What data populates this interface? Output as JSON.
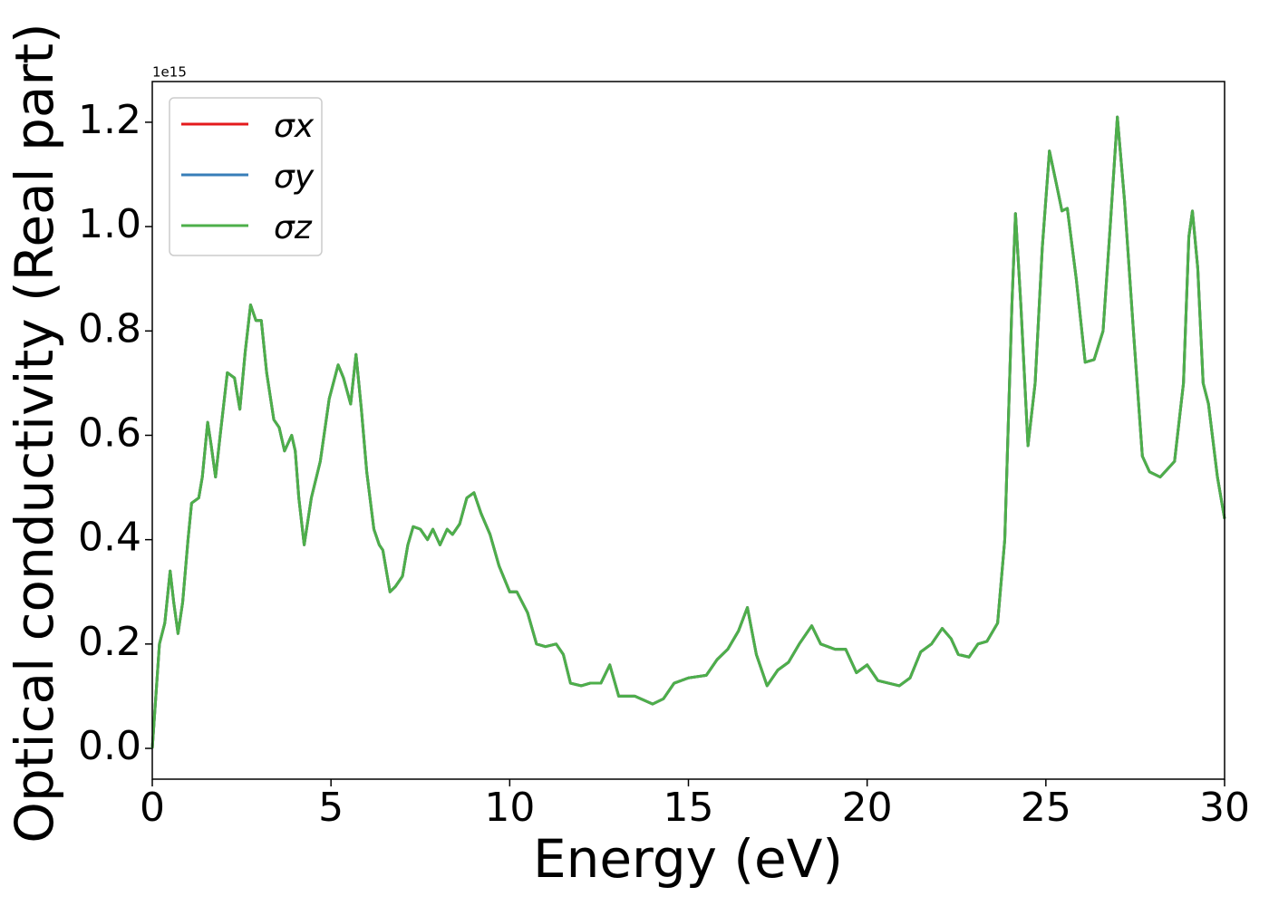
{
  "chart_data": {
    "type": "line",
    "xlabel": "Energy (eV)",
    "ylabel": "Optical conductivity (Real part)",
    "y_offset_label": "1e15",
    "x": [
      0,
      0.1,
      0.2,
      0.35,
      0.5,
      0.6,
      0.72,
      0.85,
      1.0,
      1.1,
      1.3,
      1.4,
      1.55,
      1.65,
      1.77,
      1.9,
      2.1,
      2.3,
      2.45,
      2.6,
      2.75,
      2.9,
      3.05,
      3.2,
      3.4,
      3.55,
      3.7,
      3.9,
      4.0,
      4.1,
      4.25,
      4.45,
      4.7,
      4.95,
      5.2,
      5.35,
      5.55,
      5.7,
      5.85,
      6.0,
      6.2,
      6.35,
      6.45,
      6.65,
      6.8,
      7.0,
      7.15,
      7.3,
      7.5,
      7.7,
      7.85,
      8.05,
      8.25,
      8.4,
      8.6,
      8.8,
      9.0,
      9.2,
      9.45,
      9.7,
      10.0,
      10.2,
      10.5,
      10.75,
      11.0,
      11.3,
      11.5,
      11.7,
      12.0,
      12.25,
      12.55,
      12.8,
      13.05,
      13.5,
      14.0,
      14.3,
      14.6,
      15.0,
      15.5,
      15.8,
      16.1,
      16.4,
      16.65,
      16.9,
      17.2,
      17.5,
      17.8,
      18.1,
      18.45,
      18.7,
      19.1,
      19.4,
      19.7,
      20.0,
      20.3,
      20.6,
      20.9,
      21.2,
      21.5,
      21.8,
      22.1,
      22.35,
      22.55,
      22.85,
      23.1,
      23.35,
      23.65,
      23.85,
      24.05,
      24.15,
      24.3,
      24.5,
      24.7,
      24.9,
      25.1,
      25.3,
      25.45,
      25.6,
      25.85,
      26.1,
      26.35,
      26.6,
      26.8,
      27.0,
      27.2,
      27.45,
      27.7,
      27.9,
      28.2,
      28.4,
      28.6,
      28.85,
      29.0,
      29.1,
      29.25,
      29.4,
      29.55,
      29.8,
      30.0
    ],
    "series": [
      {
        "name": "σx",
        "color": "#e41a1c",
        "values": [
          0,
          0.1,
          0.2,
          0.24,
          0.34,
          0.28,
          0.22,
          0.28,
          0.4,
          0.47,
          0.48,
          0.52,
          0.625,
          0.58,
          0.52,
          0.6,
          0.72,
          0.71,
          0.65,
          0.76,
          0.85,
          0.82,
          0.82,
          0.72,
          0.63,
          0.615,
          0.57,
          0.6,
          0.57,
          0.48,
          0.39,
          0.48,
          0.55,
          0.67,
          0.735,
          0.71,
          0.66,
          0.755,
          0.65,
          0.53,
          0.42,
          0.39,
          0.38,
          0.3,
          0.31,
          0.33,
          0.39,
          0.425,
          0.42,
          0.4,
          0.42,
          0.39,
          0.42,
          0.41,
          0.43,
          0.48,
          0.49,
          0.45,
          0.41,
          0.35,
          0.3,
          0.3,
          0.26,
          0.2,
          0.195,
          0.2,
          0.18,
          0.125,
          0.12,
          0.125,
          0.125,
          0.16,
          0.1,
          0.1,
          0.085,
          0.095,
          0.125,
          0.135,
          0.14,
          0.17,
          0.19,
          0.225,
          0.27,
          0.18,
          0.12,
          0.15,
          0.165,
          0.2,
          0.235,
          0.2,
          0.19,
          0.19,
          0.145,
          0.16,
          0.13,
          0.125,
          0.12,
          0.135,
          0.185,
          0.2,
          0.23,
          0.21,
          0.18,
          0.175,
          0.2,
          0.205,
          0.24,
          0.4,
          0.85,
          1.025,
          0.85,
          0.58,
          0.7,
          0.96,
          1.145,
          1.08,
          1.03,
          1.035,
          0.9,
          0.74,
          0.745,
          0.8,
          1.0,
          1.21,
          1.05,
          0.8,
          0.56,
          0.53,
          0.52,
          0.535,
          0.55,
          0.7,
          0.98,
          1.03,
          0.92,
          0.7,
          0.66,
          0.52,
          0.44
        ]
      },
      {
        "name": "σy",
        "color": "#377eb8",
        "values": [
          0,
          0.1,
          0.2,
          0.24,
          0.34,
          0.28,
          0.22,
          0.28,
          0.4,
          0.47,
          0.48,
          0.52,
          0.625,
          0.58,
          0.52,
          0.6,
          0.72,
          0.71,
          0.65,
          0.76,
          0.85,
          0.82,
          0.82,
          0.72,
          0.63,
          0.615,
          0.57,
          0.6,
          0.57,
          0.48,
          0.39,
          0.48,
          0.55,
          0.67,
          0.735,
          0.71,
          0.66,
          0.755,
          0.65,
          0.53,
          0.42,
          0.39,
          0.38,
          0.3,
          0.31,
          0.33,
          0.39,
          0.425,
          0.42,
          0.4,
          0.42,
          0.39,
          0.42,
          0.41,
          0.43,
          0.48,
          0.49,
          0.45,
          0.41,
          0.35,
          0.3,
          0.3,
          0.26,
          0.2,
          0.195,
          0.2,
          0.18,
          0.125,
          0.12,
          0.125,
          0.125,
          0.16,
          0.1,
          0.1,
          0.085,
          0.095,
          0.125,
          0.135,
          0.14,
          0.17,
          0.19,
          0.225,
          0.27,
          0.18,
          0.12,
          0.15,
          0.165,
          0.2,
          0.235,
          0.2,
          0.19,
          0.19,
          0.145,
          0.16,
          0.13,
          0.125,
          0.12,
          0.135,
          0.185,
          0.2,
          0.23,
          0.21,
          0.18,
          0.175,
          0.2,
          0.205,
          0.24,
          0.4,
          0.85,
          1.025,
          0.85,
          0.58,
          0.7,
          0.96,
          1.145,
          1.08,
          1.03,
          1.035,
          0.9,
          0.74,
          0.745,
          0.8,
          1.0,
          1.21,
          1.05,
          0.8,
          0.56,
          0.53,
          0.52,
          0.535,
          0.55,
          0.7,
          0.98,
          1.03,
          0.92,
          0.7,
          0.66,
          0.52,
          0.44
        ]
      },
      {
        "name": "σz",
        "color": "#4daf4a",
        "values": [
          0,
          0.1,
          0.2,
          0.24,
          0.34,
          0.28,
          0.22,
          0.28,
          0.4,
          0.47,
          0.48,
          0.52,
          0.625,
          0.58,
          0.52,
          0.6,
          0.72,
          0.71,
          0.65,
          0.76,
          0.85,
          0.82,
          0.82,
          0.72,
          0.63,
          0.615,
          0.57,
          0.6,
          0.57,
          0.48,
          0.39,
          0.48,
          0.55,
          0.67,
          0.735,
          0.71,
          0.66,
          0.755,
          0.65,
          0.53,
          0.42,
          0.39,
          0.38,
          0.3,
          0.31,
          0.33,
          0.39,
          0.425,
          0.42,
          0.4,
          0.42,
          0.39,
          0.42,
          0.41,
          0.43,
          0.48,
          0.49,
          0.45,
          0.41,
          0.35,
          0.3,
          0.3,
          0.26,
          0.2,
          0.195,
          0.2,
          0.18,
          0.125,
          0.12,
          0.125,
          0.125,
          0.16,
          0.1,
          0.1,
          0.085,
          0.095,
          0.125,
          0.135,
          0.14,
          0.17,
          0.19,
          0.225,
          0.27,
          0.18,
          0.12,
          0.15,
          0.165,
          0.2,
          0.235,
          0.2,
          0.19,
          0.19,
          0.145,
          0.16,
          0.13,
          0.125,
          0.12,
          0.135,
          0.185,
          0.2,
          0.23,
          0.21,
          0.18,
          0.175,
          0.2,
          0.205,
          0.24,
          0.4,
          0.85,
          1.025,
          0.85,
          0.58,
          0.7,
          0.96,
          1.145,
          1.08,
          1.03,
          1.035,
          0.9,
          0.74,
          0.745,
          0.8,
          1.0,
          1.21,
          1.05,
          0.8,
          0.56,
          0.53,
          0.52,
          0.535,
          0.55,
          0.7,
          0.98,
          1.03,
          0.92,
          0.7,
          0.66,
          0.52,
          0.44
        ]
      }
    ],
    "xlim": [
      0,
      30
    ],
    "xticks": [
      0,
      5,
      10,
      15,
      20,
      25,
      30
    ],
    "ylim": [
      -0.059,
      1.278
    ],
    "yticks": [
      {
        "value": 0,
        "label": "0.0"
      },
      0.2,
      0.4,
      0.6,
      0.8,
      {
        "value": 1,
        "label": "1.0"
      },
      1.2
    ],
    "grid": false,
    "legend": "upper left"
  }
}
